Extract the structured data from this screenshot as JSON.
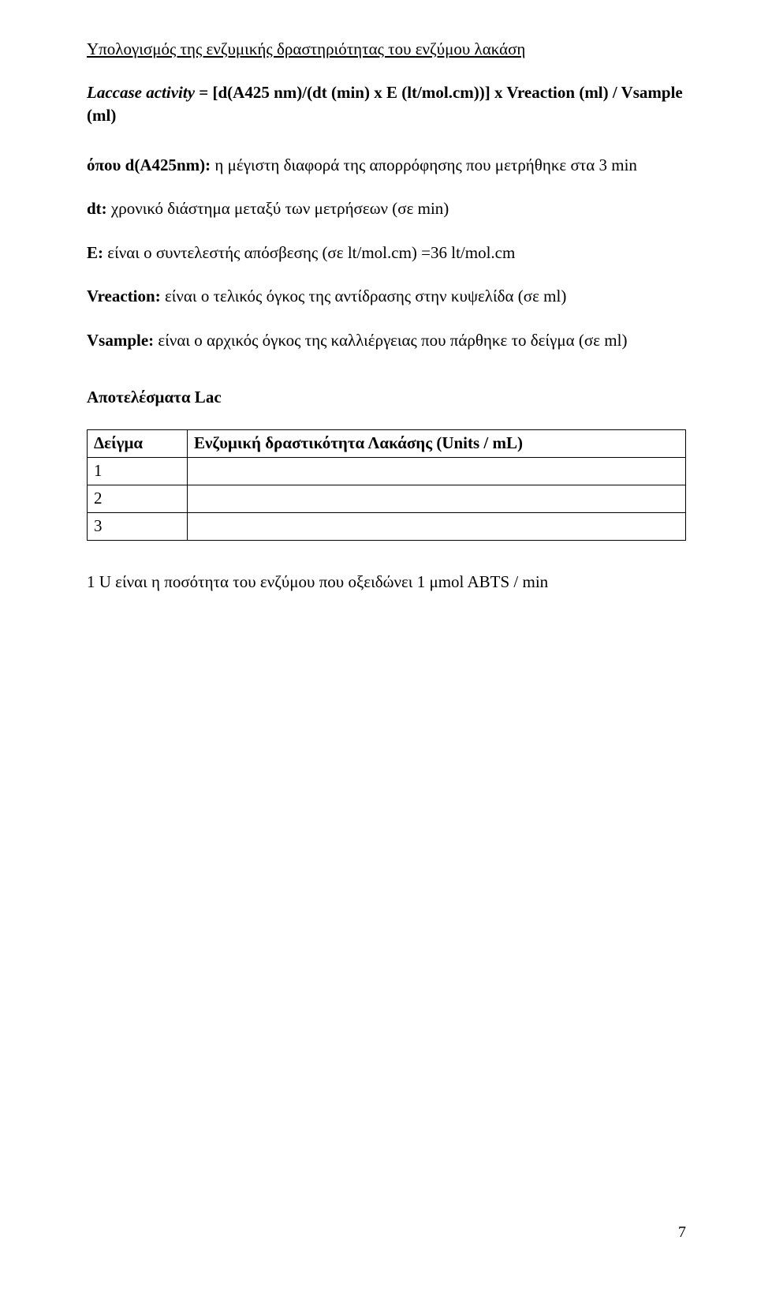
{
  "section_title": "Υπολογισμός της ενζυμικής δραστηριότητας του ενζύμου λακάση",
  "formula": {
    "line1_prefix_italic": "Laccase activity",
    "line1_rest": " = [d(A425 nm)/(dt (min) x E (lt/mol.cm))] x Vreaction (ml) / Vsample (ml)"
  },
  "definitions": [
    {
      "label": "όπου d(A425nm):",
      "text": " η μέγιστη διαφορά της απορρόφησης που μετρήθηκε στα 3 min"
    },
    {
      "label": "dt:",
      "text": " χρονικό διάστημα μεταξύ των μετρήσεων (σε min)"
    },
    {
      "label": "E:",
      "text": " είναι ο συντελεστής απόσβεσης (σε lt/mol.cm) =36 lt/mol.cm"
    },
    {
      "label": "Vreaction:",
      "text": " είναι ο τελικός όγκος της αντίδρασης στην κυψελίδα (σε ml)"
    },
    {
      "label": "Vsample:",
      "text": " είναι ο αρχικός όγκος της καλλιέργειας που πάρθηκε το δείγμα (σε ml)"
    }
  ],
  "results_heading": "Αποτελέσματα  Lac",
  "table": {
    "col_sample": "Δείγμα",
    "col_activity": "Ενζυμική δραστικότητα Λακάσης (Units / mL)",
    "rows": [
      {
        "sample": "1",
        "value": ""
      },
      {
        "sample": "2",
        "value": ""
      },
      {
        "sample": "3",
        "value": ""
      }
    ]
  },
  "footnote": "1 U είναι η ποσότητα του ενζύμου που οξειδώνει 1 μmol ABTS / min",
  "page_number": "7"
}
